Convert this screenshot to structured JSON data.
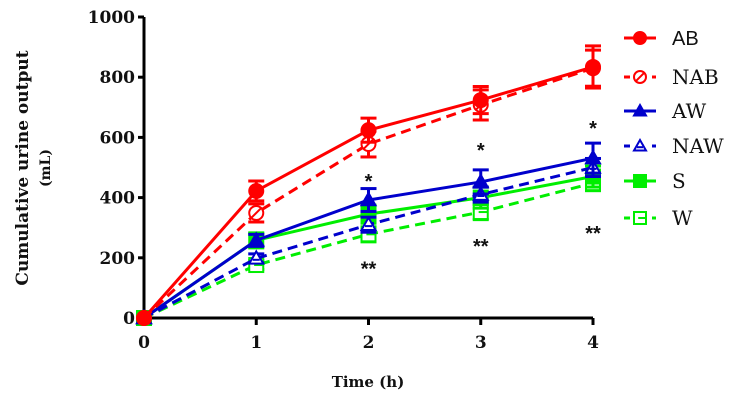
{
  "chart_data": {
    "type": "line",
    "title": "",
    "xlabel": "Time (h)",
    "ylabel": "Cumulative urine output (mL)",
    "ylabel_lines": [
      "Cumulative urine output",
      "(mL)"
    ],
    "x": [
      0,
      1,
      2,
      3,
      4
    ],
    "xlim": [
      0,
      4
    ],
    "ylim": [
      0,
      1000
    ],
    "xticks": [
      "0",
      "1",
      "2",
      "3",
      "4"
    ],
    "yticks": [
      "0",
      "200",
      "400",
      "600",
      "800",
      "1000"
    ],
    "grid": false,
    "legend_position": "right",
    "series": [
      {
        "name": "AB",
        "color": "#ff0000",
        "dashed": false,
        "marker": "circle-filled",
        "values": [
          0,
          422,
          624,
          724,
          834
        ],
        "error": [
          0,
          33,
          40,
          45,
          70
        ]
      },
      {
        "name": "NAB",
        "color": "#ff0000",
        "dashed": true,
        "marker": "circle-open",
        "values": [
          0,
          349,
          578,
          708,
          830
        ],
        "error": [
          0,
          30,
          43,
          50,
          60
        ]
      },
      {
        "name": "AW",
        "color": "#0000cc",
        "dashed": false,
        "marker": "triangle-filled",
        "values": [
          0,
          258,
          392,
          452,
          531
        ],
        "error": [
          0,
          20,
          38,
          40,
          50
        ]
      },
      {
        "name": "NAW",
        "color": "#0000cc",
        "dashed": true,
        "marker": "triangle-open",
        "values": [
          0,
          198,
          310,
          410,
          500
        ],
        "error": [
          0,
          15,
          25,
          25,
          30
        ]
      },
      {
        "name": "S",
        "color": "#00ee00",
        "dashed": false,
        "marker": "square-filled",
        "values": [
          0,
          258,
          345,
          400,
          470
        ],
        "error": [
          0,
          25,
          30,
          35,
          35
        ]
      },
      {
        "name": "W",
        "color": "#00ee00",
        "dashed": true,
        "marker": "square-open",
        "values": [
          0,
          176,
          278,
          352,
          448
        ],
        "error": [
          0,
          15,
          25,
          25,
          25
        ]
      }
    ],
    "annotations": [
      {
        "x": 2,
        "y": 465,
        "text": "*"
      },
      {
        "x": 3,
        "y": 568,
        "text": "*"
      },
      {
        "x": 4,
        "y": 641,
        "text": "*"
      },
      {
        "x": 2,
        "y": 175,
        "text": "**"
      },
      {
        "x": 3,
        "y": 250,
        "text": "**"
      },
      {
        "x": 4,
        "y": 293,
        "text": "**"
      }
    ]
  }
}
